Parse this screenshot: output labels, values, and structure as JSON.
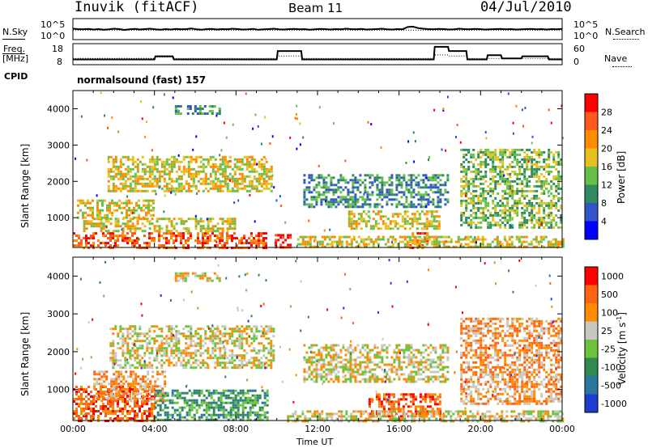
{
  "header": {
    "site": "Inuvik (fitACF)",
    "beam": "Beam 11",
    "date": "04/Jul/2010"
  },
  "noise_panel": {
    "left_label": "N.Sky",
    "right_label": "N.Search",
    "ticks": [
      "10^5",
      "10^0"
    ],
    "sky_series": [
      0.52,
      0.5,
      0.49,
      0.51,
      0.48,
      0.5,
      0.47,
      0.49,
      0.52,
      0.5,
      0.46,
      0.49,
      0.51,
      0.48,
      0.5,
      0.52,
      0.49,
      0.47,
      0.5,
      0.48,
      0.51,
      0.49,
      0.5,
      0.53,
      0.49,
      0.47,
      0.5,
      0.51,
      0.48,
      0.5,
      0.49,
      0.52,
      0.5,
      0.48,
      0.49,
      0.51,
      0.47,
      0.49,
      0.5,
      0.52,
      0.49,
      0.48,
      0.5,
      0.51,
      0.49,
      0.5,
      0.47,
      0.49,
      0.51,
      0.5,
      0.48,
      0.5,
      0.49,
      0.52,
      0.5,
      0.49,
      0.51,
      0.48,
      0.49,
      0.5,
      0.52,
      0.49,
      0.48,
      0.5,
      0.49,
      0.6,
      0.62,
      0.55,
      0.52,
      0.5,
      0.49,
      0.51,
      0.5,
      0.48,
      0.49,
      0.52,
      0.5,
      0.49,
      0.51,
      0.5,
      0.48,
      0.49,
      0.5,
      0.51,
      0.49,
      0.5,
      0.48,
      0.49,
      0.5,
      0.51,
      0.49,
      0.5,
      0.48,
      0.5,
      0.49,
      0.51
    ]
  },
  "freq_panel": {
    "left_label_1": "Freq.",
    "left_label_2": "[MHz]",
    "cpid_label": "CPID",
    "right_label": "Nave",
    "left_ticks": [
      "18",
      "8"
    ],
    "right_ticks": [
      "60",
      "0"
    ],
    "freq_series": [
      {
        "t": 0.0,
        "f": 10.5
      },
      {
        "t": 4.0,
        "f": 10.5
      },
      {
        "t": 4.05,
        "f": 12.0
      },
      {
        "t": 4.9,
        "f": 12.0
      },
      {
        "t": 4.95,
        "f": 10.5
      },
      {
        "t": 10.0,
        "f": 10.5
      },
      {
        "t": 10.05,
        "f": 14.5
      },
      {
        "t": 11.2,
        "f": 14.5
      },
      {
        "t": 11.25,
        "f": 10.5
      },
      {
        "t": 17.7,
        "f": 10.5
      },
      {
        "t": 17.75,
        "f": 16.5
      },
      {
        "t": 18.4,
        "f": 16.5
      },
      {
        "t": 18.45,
        "f": 14.5
      },
      {
        "t": 19.3,
        "f": 14.5
      },
      {
        "t": 19.35,
        "f": 10.5
      },
      {
        "t": 20.3,
        "f": 10.5
      },
      {
        "t": 20.35,
        "f": 12.5
      },
      {
        "t": 21.0,
        "f": 12.5
      },
      {
        "t": 21.05,
        "f": 11.0
      },
      {
        "t": 22.0,
        "f": 11.0
      },
      {
        "t": 22.05,
        "f": 12.0
      },
      {
        "t": 23.3,
        "f": 12.0
      },
      {
        "t": 23.35,
        "f": 10.5
      },
      {
        "t": 24.0,
        "f": 10.5
      }
    ],
    "nave_series": [
      {
        "t": 0.0,
        "n": 18
      },
      {
        "t": 4.0,
        "n": 18
      },
      {
        "t": 4.05,
        "n": 22
      },
      {
        "t": 4.9,
        "n": 22
      },
      {
        "t": 4.95,
        "n": 18
      },
      {
        "t": 10.0,
        "n": 18
      },
      {
        "t": 10.05,
        "n": 25
      },
      {
        "t": 11.2,
        "n": 25
      },
      {
        "t": 11.25,
        "n": 18
      },
      {
        "t": 17.7,
        "n": 18
      },
      {
        "t": 17.75,
        "n": 28
      },
      {
        "t": 18.4,
        "n": 28
      },
      {
        "t": 18.45,
        "n": 25
      },
      {
        "t": 19.3,
        "n": 25
      },
      {
        "t": 19.35,
        "n": 18
      },
      {
        "t": 24.0,
        "n": 18
      }
    ],
    "mode_text": "normalsound (fast) 157"
  },
  "chart_data": [
    {
      "type": "heatmap",
      "title": "",
      "xlabel": "Time UT",
      "ylabel": "Slant Range [km]",
      "xlim": [
        0,
        24
      ],
      "ylim": [
        180,
        4500
      ],
      "yticks": [
        "1000",
        "2000",
        "3000",
        "4000"
      ],
      "x_tick_labels": [
        "00:00",
        "04:00",
        "08:00",
        "12:00",
        "16:00",
        "20:00",
        "00:00"
      ],
      "colorbar": {
        "label": "Power [dB]",
        "ticks": [
          "4",
          "8",
          "12",
          "16",
          "20",
          "24",
          "28"
        ],
        "colors": [
          "#0000ff",
          "#3355cc",
          "#2f8a60",
          "#66c04a",
          "#e6c020",
          "#ff8c00",
          "#ff5a1e",
          "#ff0000"
        ]
      },
      "echo_regions": [
        {
          "t0": 0.0,
          "t1": 9.5,
          "r0": 180,
          "r1": 600,
          "level": 0.85
        },
        {
          "t0": 0.5,
          "t1": 8.0,
          "r0": 600,
          "r1": 1000,
          "level": 0.55
        },
        {
          "t0": 0.2,
          "t1": 4.0,
          "r0": 1000,
          "r1": 1500,
          "level": 0.5
        },
        {
          "t0": 1.7,
          "t1": 9.8,
          "r0": 1700,
          "r1": 2700,
          "level": 0.6
        },
        {
          "t0": 5.0,
          "t1": 7.2,
          "r0": 3850,
          "r1": 4100,
          "level": 0.25
        },
        {
          "t0": 9.9,
          "t1": 10.7,
          "r0": 180,
          "r1": 550,
          "level": 0.95
        },
        {
          "t0": 11.3,
          "t1": 18.4,
          "r0": 1300,
          "r1": 2200,
          "level": 0.3
        },
        {
          "t0": 13.5,
          "t1": 18.0,
          "r0": 700,
          "r1": 1200,
          "level": 0.55
        },
        {
          "t0": 16.5,
          "t1": 17.4,
          "r0": 180,
          "r1": 600,
          "level": 0.9
        },
        {
          "t0": 19.0,
          "t1": 24.0,
          "r0": 700,
          "r1": 2900,
          "level": 0.45
        },
        {
          "t0": 11.0,
          "t1": 24.0,
          "r0": 180,
          "r1": 500,
          "level": 0.5
        }
      ]
    },
    {
      "type": "heatmap",
      "title": "",
      "xlabel": "Time UT",
      "ylabel": "Slant Range [km]",
      "xlim": [
        0,
        24
      ],
      "ylim": [
        180,
        4500
      ],
      "yticks": [
        "1000",
        "2000",
        "3000",
        "4000"
      ],
      "x_tick_labels": [
        "00:00",
        "04:00",
        "08:00",
        "12:00",
        "16:00",
        "20:00",
        "00:00"
      ],
      "colorbar": {
        "label": "Velocity [m s",
        "label_sup": "-1",
        "label_end": "]",
        "ticks": [
          "1000",
          "500",
          "100",
          "25",
          "-25",
          "-100",
          "-500",
          "-1000"
        ],
        "colors": [
          "#1e3cd2",
          "#2a78a0",
          "#2f8a50",
          "#6cc43c",
          "#c8c8c0",
          "#ff8c00",
          "#ff6414",
          "#ff0000"
        ]
      },
      "echo_regions": [
        {
          "t0": 0.0,
          "t1": 4.0,
          "r0": 180,
          "r1": 1100,
          "level": "-500"
        },
        {
          "t0": 1.0,
          "t1": 4.5,
          "r0": 700,
          "r1": 1500,
          "level": "-100"
        },
        {
          "t0": 1.8,
          "t1": 9.8,
          "r0": 1600,
          "r1": 2700,
          "level": "-25"
        },
        {
          "t0": 4.0,
          "t1": 9.5,
          "r0": 180,
          "r1": 1000,
          "level": "100"
        },
        {
          "t0": 5.0,
          "t1": 7.2,
          "r0": 3850,
          "r1": 4100,
          "level": "-25"
        },
        {
          "t0": 11.3,
          "t1": 18.4,
          "r0": 1200,
          "r1": 2200,
          "level": "-25"
        },
        {
          "t0": 14.5,
          "t1": 18.0,
          "r0": 300,
          "r1": 900,
          "level": "-500"
        },
        {
          "t0": 19.0,
          "t1": 24.0,
          "r0": 600,
          "r1": 2900,
          "level": "-100"
        },
        {
          "t0": 10.5,
          "t1": 24.0,
          "r0": 180,
          "r1": 450,
          "level": "-25"
        }
      ]
    }
  ]
}
